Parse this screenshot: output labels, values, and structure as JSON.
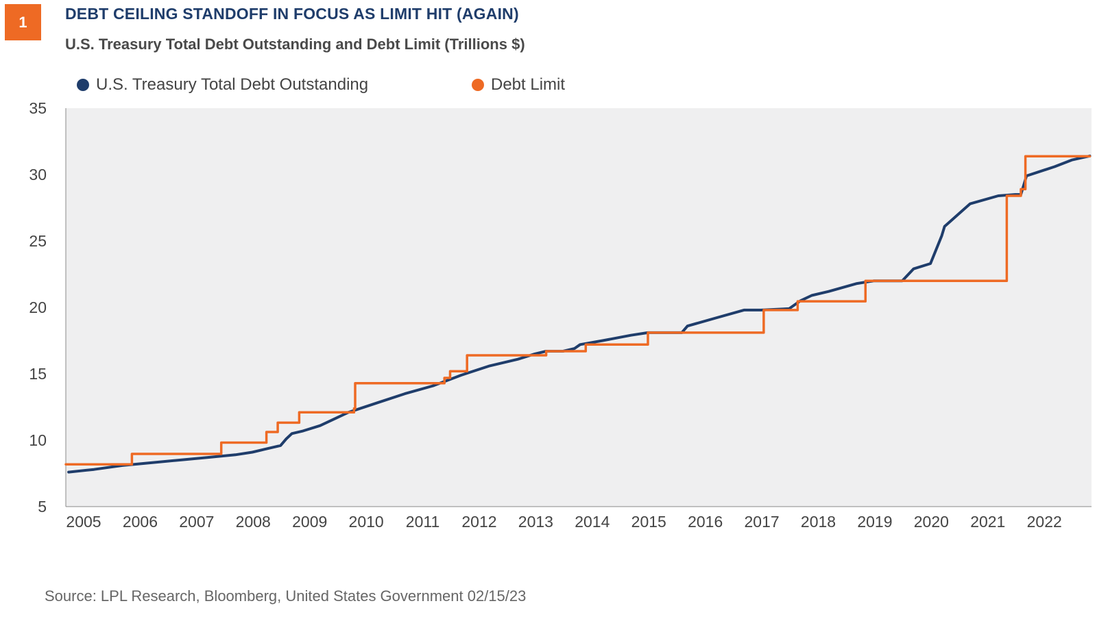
{
  "figure_number": "1",
  "title": "DEBT CEILING STANDOFF IN FOCUS AS LIMIT HIT (AGAIN)",
  "subtitle": "U.S. Treasury Total Debt Outstanding and Debt Limit (Trillions $)",
  "source": "Source: LPL Research,  Bloomberg, United States Government  02/15/23",
  "colors": {
    "badge": "#EE6A24",
    "title": "#1F3D6B",
    "debt_series": "#1F3D6B",
    "limit_series": "#EE6A24",
    "plot_background": "#EFEFF0"
  },
  "chart_data": {
    "type": "line",
    "title": "U.S. Treasury Total Debt Outstanding and Debt Limit (Trillions $)",
    "ylabel": "",
    "xlabel": "",
    "xlim": [
      2005.0,
      2023.15
    ],
    "ylim": [
      5,
      35
    ],
    "y_ticks": [
      5,
      10,
      15,
      20,
      25,
      30,
      35
    ],
    "x_ticks": [
      2005,
      2006,
      2007,
      2008,
      2009,
      2010,
      2011,
      2012,
      2013,
      2014,
      2015,
      2016,
      2017,
      2018,
      2019,
      2020,
      2021,
      2022
    ],
    "x_tick_labels": [
      "2005",
      "2006",
      "2007",
      "2008",
      "2009",
      "2010",
      "2011",
      "2012",
      "2013",
      "2014",
      "2015",
      "2016",
      "2017",
      "2018",
      "2019",
      "2020",
      "2021",
      "2022"
    ],
    "grid": false,
    "legend_position": "top-left",
    "series": [
      {
        "name": "U.S. Treasury Total Debt Outstanding",
        "color": "#1F3D6B",
        "style": "line",
        "points": [
          [
            2005.05,
            7.6
          ],
          [
            2005.5,
            7.8
          ],
          [
            2006.0,
            8.1
          ],
          [
            2006.5,
            8.3
          ],
          [
            2007.0,
            8.5
          ],
          [
            2007.5,
            8.7
          ],
          [
            2008.0,
            8.9
          ],
          [
            2008.3,
            9.1
          ],
          [
            2008.5,
            9.3
          ],
          [
            2008.8,
            9.6
          ],
          [
            2008.9,
            10.1
          ],
          [
            2009.0,
            10.5
          ],
          [
            2009.2,
            10.7
          ],
          [
            2009.5,
            11.1
          ],
          [
            2010.0,
            12.1
          ],
          [
            2010.5,
            12.8
          ],
          [
            2011.0,
            13.5
          ],
          [
            2011.5,
            14.1
          ],
          [
            2012.0,
            14.9
          ],
          [
            2012.5,
            15.6
          ],
          [
            2013.0,
            16.1
          ],
          [
            2013.3,
            16.5
          ],
          [
            2013.5,
            16.7
          ],
          [
            2013.8,
            16.7
          ],
          [
            2014.0,
            16.9
          ],
          [
            2014.1,
            17.2
          ],
          [
            2014.5,
            17.5
          ],
          [
            2015.0,
            17.9
          ],
          [
            2015.3,
            18.1
          ],
          [
            2015.9,
            18.1
          ],
          [
            2016.0,
            18.6
          ],
          [
            2016.5,
            19.2
          ],
          [
            2017.0,
            19.8
          ],
          [
            2017.3,
            19.8
          ],
          [
            2017.8,
            19.9
          ],
          [
            2018.0,
            20.5
          ],
          [
            2018.2,
            20.9
          ],
          [
            2018.5,
            21.2
          ],
          [
            2019.0,
            21.8
          ],
          [
            2019.3,
            22.0
          ],
          [
            2019.8,
            22.0
          ],
          [
            2020.0,
            22.9
          ],
          [
            2020.3,
            23.3
          ],
          [
            2020.5,
            25.4
          ],
          [
            2020.55,
            26.1
          ],
          [
            2021.0,
            27.8
          ],
          [
            2021.5,
            28.4
          ],
          [
            2021.8,
            28.5
          ],
          [
            2021.9,
            28.5
          ],
          [
            2022.0,
            29.9
          ],
          [
            2022.5,
            30.6
          ],
          [
            2022.8,
            31.1
          ],
          [
            2023.12,
            31.4
          ]
        ]
      },
      {
        "name": "Debt Limit",
        "color": "#EE6A24",
        "style": "step",
        "points": [
          [
            2005.0,
            8.18
          ],
          [
            2006.17,
            8.97
          ],
          [
            2007.75,
            9.82
          ],
          [
            2008.55,
            10.62
          ],
          [
            2008.75,
            11.32
          ],
          [
            2009.13,
            12.1
          ],
          [
            2010.1,
            12.39
          ],
          [
            2010.12,
            14.29
          ],
          [
            2011.7,
            14.69
          ],
          [
            2011.8,
            15.19
          ],
          [
            2012.1,
            16.39
          ],
          [
            2013.5,
            16.7
          ],
          [
            2014.2,
            17.2
          ],
          [
            2015.3,
            18.1
          ],
          [
            2017.35,
            19.8
          ],
          [
            2017.95,
            20.46
          ],
          [
            2019.15,
            22.0
          ],
          [
            2021.65,
            28.4
          ],
          [
            2021.9,
            28.9
          ],
          [
            2021.98,
            31.38
          ],
          [
            2023.12,
            31.38
          ]
        ]
      }
    ]
  }
}
